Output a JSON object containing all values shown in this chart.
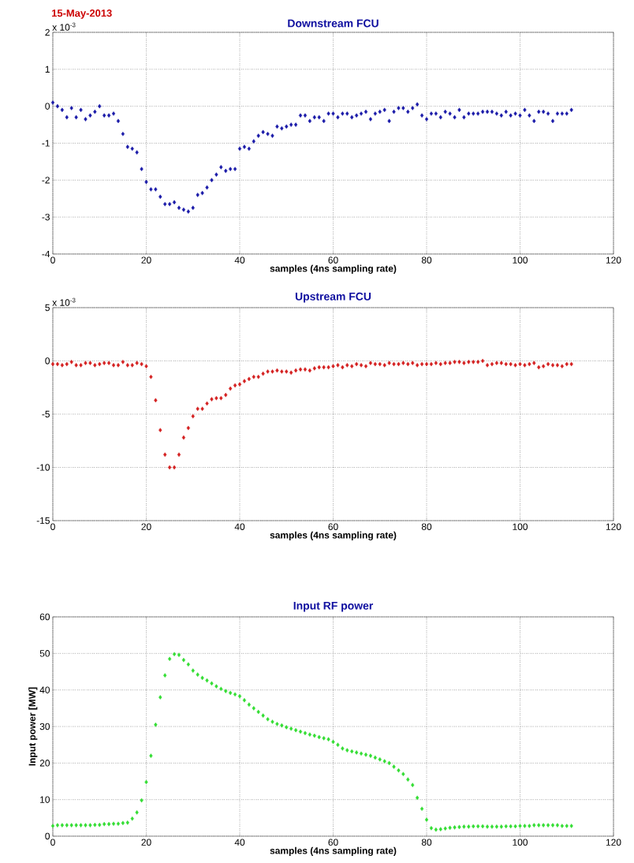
{
  "chart_data": [
    {
      "type": "scatter",
      "title": "Downstream FCU",
      "xlabel": "samples (4ns sampling rate)",
      "annotations": [
        "15-May-2013",
        "x 10$^{-3}$"
      ],
      "xlim": [
        0,
        120
      ],
      "xticks": [
        0,
        20,
        40,
        60,
        80,
        100,
        120
      ],
      "ylim": [
        -4,
        2
      ],
      "yticks": [
        -4,
        -3,
        -2,
        -1,
        0,
        1,
        2
      ],
      "grid": true,
      "marker": "diamond",
      "x": [
        0,
        1,
        2,
        3,
        4,
        5,
        6,
        7,
        8,
        9,
        10,
        11,
        12,
        13,
        14,
        15,
        16,
        17,
        18,
        19,
        20,
        21,
        22,
        23,
        24,
        25,
        26,
        27,
        28,
        29,
        30,
        31,
        32,
        33,
        34,
        35,
        36,
        37,
        38,
        39,
        40,
        41,
        42,
        43,
        44,
        45,
        46,
        47,
        48,
        49,
        50,
        51,
        52,
        53,
        54,
        55,
        56,
        57,
        58,
        59,
        60,
        61,
        62,
        63,
        64,
        65,
        66,
        67,
        68,
        69,
        70,
        71,
        72,
        73,
        74,
        75,
        76,
        77,
        78,
        79,
        80,
        81,
        82,
        83,
        84,
        85,
        86,
        87,
        88,
        89,
        90,
        91,
        92,
        93,
        94,
        95,
        96,
        97,
        98,
        99,
        100,
        101,
        102,
        103,
        104,
        105,
        106,
        107,
        108,
        109,
        110,
        111
      ],
      "series": [
        {
          "color": "#1a1aa8",
          "values": [
            0.1,
            0,
            -0.1,
            -0.3,
            -0.05,
            -0.3,
            -0.1,
            -0.35,
            -0.25,
            -0.15,
            0,
            -0.25,
            -0.25,
            -0.2,
            -0.4,
            -0.75,
            -1.1,
            -1.15,
            -1.25,
            -1.7,
            -2.05,
            -2.25,
            -2.25,
            -2.45,
            -2.65,
            -2.65,
            -2.6,
            -2.75,
            -2.8,
            -2.85,
            -2.75,
            -2.4,
            -2.35,
            -2.2,
            -2,
            -1.85,
            -1.65,
            -1.75,
            -1.7,
            -1.7,
            -1.15,
            -1.1,
            -1.15,
            -0.95,
            -0.8,
            -0.7,
            -0.75,
            -0.8,
            -0.55,
            -0.6,
            -0.55,
            -0.5,
            -0.5,
            -0.25,
            -0.25,
            -0.4,
            -0.3,
            -0.3,
            -0.4,
            -0.2,
            -0.2,
            -0.3,
            -0.2,
            -0.2,
            -0.3,
            -0.25,
            -0.2,
            -0.15,
            -0.35,
            -0.2,
            -0.15,
            -0.1,
            -0.4,
            -0.15,
            -0.05,
            -0.05,
            -0.15,
            -0.05,
            0.05,
            -0.25,
            -0.35,
            -0.2,
            -0.2,
            -0.3,
            -0.15,
            -0.2,
            -0.3,
            -0.1,
            -0.3,
            -0.2,
            -0.2,
            -0.2,
            -0.15,
            -0.15,
            -0.15,
            -0.2,
            -0.25,
            -0.15,
            -0.25,
            -0.2,
            -0.25,
            -0.1,
            -0.25,
            -0.4,
            -0.15,
            -0.15,
            -0.2,
            -0.4,
            -0.2,
            -0.2,
            -0.2,
            -0.1
          ]
        }
      ]
    },
    {
      "type": "scatter",
      "title": "Upstream FCU",
      "xlabel": "samples (4ns sampling rate)",
      "annotations": [
        "x 10$^{-3}$"
      ],
      "xlim": [
        0,
        120
      ],
      "xticks": [
        0,
        20,
        40,
        60,
        80,
        100,
        120
      ],
      "ylim": [
        -15,
        5
      ],
      "yticks": [
        -15,
        -10,
        -5,
        0,
        5
      ],
      "grid": true,
      "marker": "diamond",
      "x": [
        0,
        1,
        2,
        3,
        4,
        5,
        6,
        7,
        8,
        9,
        10,
        11,
        12,
        13,
        14,
        15,
        16,
        17,
        18,
        19,
        20,
        21,
        22,
        23,
        24,
        25,
        26,
        27,
        28,
        29,
        30,
        31,
        32,
        33,
        34,
        35,
        36,
        37,
        38,
        39,
        40,
        41,
        42,
        43,
        44,
        45,
        46,
        47,
        48,
        49,
        50,
        51,
        52,
        53,
        54,
        55,
        56,
        57,
        58,
        59,
        60,
        61,
        62,
        63,
        64,
        65,
        66,
        67,
        68,
        69,
        70,
        71,
        72,
        73,
        74,
        75,
        76,
        77,
        78,
        79,
        80,
        81,
        82,
        83,
        84,
        85,
        86,
        87,
        88,
        89,
        90,
        91,
        92,
        93,
        94,
        95,
        96,
        97,
        98,
        99,
        100,
        101,
        102,
        103,
        104,
        105,
        106,
        107,
        108,
        109,
        110,
        111
      ],
      "series": [
        {
          "color": "#d42020",
          "values": [
            -0.3,
            -0.3,
            -0.4,
            -0.3,
            -0.1,
            -0.4,
            -0.4,
            -0.2,
            -0.2,
            -0.4,
            -0.3,
            -0.2,
            -0.2,
            -0.4,
            -0.4,
            -0.1,
            -0.4,
            -0.4,
            -0.2,
            -0.3,
            -0.5,
            -1.5,
            -3.7,
            -6.5,
            -8.8,
            -10,
            -10,
            -8.8,
            -7.2,
            -6.3,
            -5.2,
            -4.5,
            -4.5,
            -4,
            -3.6,
            -3.5,
            -3.5,
            -3.2,
            -2.6,
            -2.3,
            -2.2,
            -1.9,
            -1.7,
            -1.5,
            -1.5,
            -1.2,
            -1,
            -1,
            -0.9,
            -1,
            -1,
            -1.1,
            -0.9,
            -0.8,
            -0.8,
            -0.9,
            -0.7,
            -0.6,
            -0.6,
            -0.6,
            -0.5,
            -0.4,
            -0.6,
            -0.4,
            -0.5,
            -0.3,
            -0.4,
            -0.5,
            -0.2,
            -0.3,
            -0.3,
            -0.4,
            -0.2,
            -0.3,
            -0.3,
            -0.2,
            -0.3,
            -0.2,
            -0.4,
            -0.3,
            -0.3,
            -0.3,
            -0.2,
            -0.3,
            -0.2,
            -0.2,
            -0.1,
            -0.1,
            -0.2,
            -0.1,
            -0.1,
            -0.1,
            0,
            -0.4,
            -0.3,
            -0.2,
            -0.2,
            -0.3,
            -0.3,
            -0.4,
            -0.3,
            -0.4,
            -0.3,
            -0.2,
            -0.6,
            -0.5,
            -0.3,
            -0.4,
            -0.4,
            -0.5,
            -0.3,
            -0.3
          ]
        }
      ]
    },
    {
      "type": "scatter",
      "title": "Input RF power",
      "xlabel": "samples (4ns sampling rate)",
      "ylabel": "Input power [MW]",
      "xlim": [
        0,
        120
      ],
      "xticks": [
        0,
        20,
        40,
        60,
        80,
        100,
        120
      ],
      "ylim": [
        0,
        60
      ],
      "yticks": [
        0,
        10,
        20,
        30,
        40,
        50,
        60
      ],
      "grid": true,
      "marker": "diamond",
      "x": [
        0,
        1,
        2,
        3,
        4,
        5,
        6,
        7,
        8,
        9,
        10,
        11,
        12,
        13,
        14,
        15,
        16,
        17,
        18,
        19,
        20,
        21,
        22,
        23,
        24,
        25,
        26,
        27,
        28,
        29,
        30,
        31,
        32,
        33,
        34,
        35,
        36,
        37,
        38,
        39,
        40,
        41,
        42,
        43,
        44,
        45,
        46,
        47,
        48,
        49,
        50,
        51,
        52,
        53,
        54,
        55,
        56,
        57,
        58,
        59,
        60,
        61,
        62,
        63,
        64,
        65,
        66,
        67,
        68,
        69,
        70,
        71,
        72,
        73,
        74,
        75,
        76,
        77,
        78,
        79,
        80,
        81,
        82,
        83,
        84,
        85,
        86,
        87,
        88,
        89,
        90,
        91,
        92,
        93,
        94,
        95,
        96,
        97,
        98,
        99,
        100,
        101,
        102,
        103,
        104,
        105,
        106,
        107,
        108,
        109,
        110,
        111
      ],
      "series": [
        {
          "color": "#33dd33",
          "values": [
            2.8,
            3,
            3,
            3,
            3,
            3,
            3,
            3,
            3,
            3.1,
            3.1,
            3.3,
            3.3,
            3.4,
            3.4,
            3.6,
            3.7,
            4.8,
            6.5,
            9.8,
            14.8,
            22,
            30.5,
            38,
            44,
            48.5,
            49.8,
            49.6,
            48.2,
            47,
            45.3,
            44.2,
            43.3,
            42.6,
            41.8,
            41,
            40.3,
            39.7,
            39.2,
            38.8,
            38.3,
            37.2,
            36,
            35,
            34,
            33,
            32,
            31.3,
            30.7,
            30.3,
            29.8,
            29.4,
            29,
            28.6,
            28.2,
            27.8,
            27.5,
            27.1,
            26.8,
            26.5,
            25.8,
            25,
            24,
            23.5,
            23.2,
            22.9,
            22.6,
            22.3,
            22,
            21.5,
            21,
            20.5,
            20,
            19,
            18,
            17,
            15.5,
            14,
            10.5,
            7.5,
            4.5,
            2.2,
            1.8,
            1.9,
            2.1,
            2.3,
            2.4,
            2.5,
            2.6,
            2.6,
            2.7,
            2.7,
            2.7,
            2.6,
            2.6,
            2.6,
            2.6,
            2.7,
            2.7,
            2.7,
            2.8,
            2.8,
            2.8,
            3,
            3,
            3,
            3,
            3,
            3,
            2.8,
            2.8,
            2.8
          ]
        }
      ]
    }
  ]
}
